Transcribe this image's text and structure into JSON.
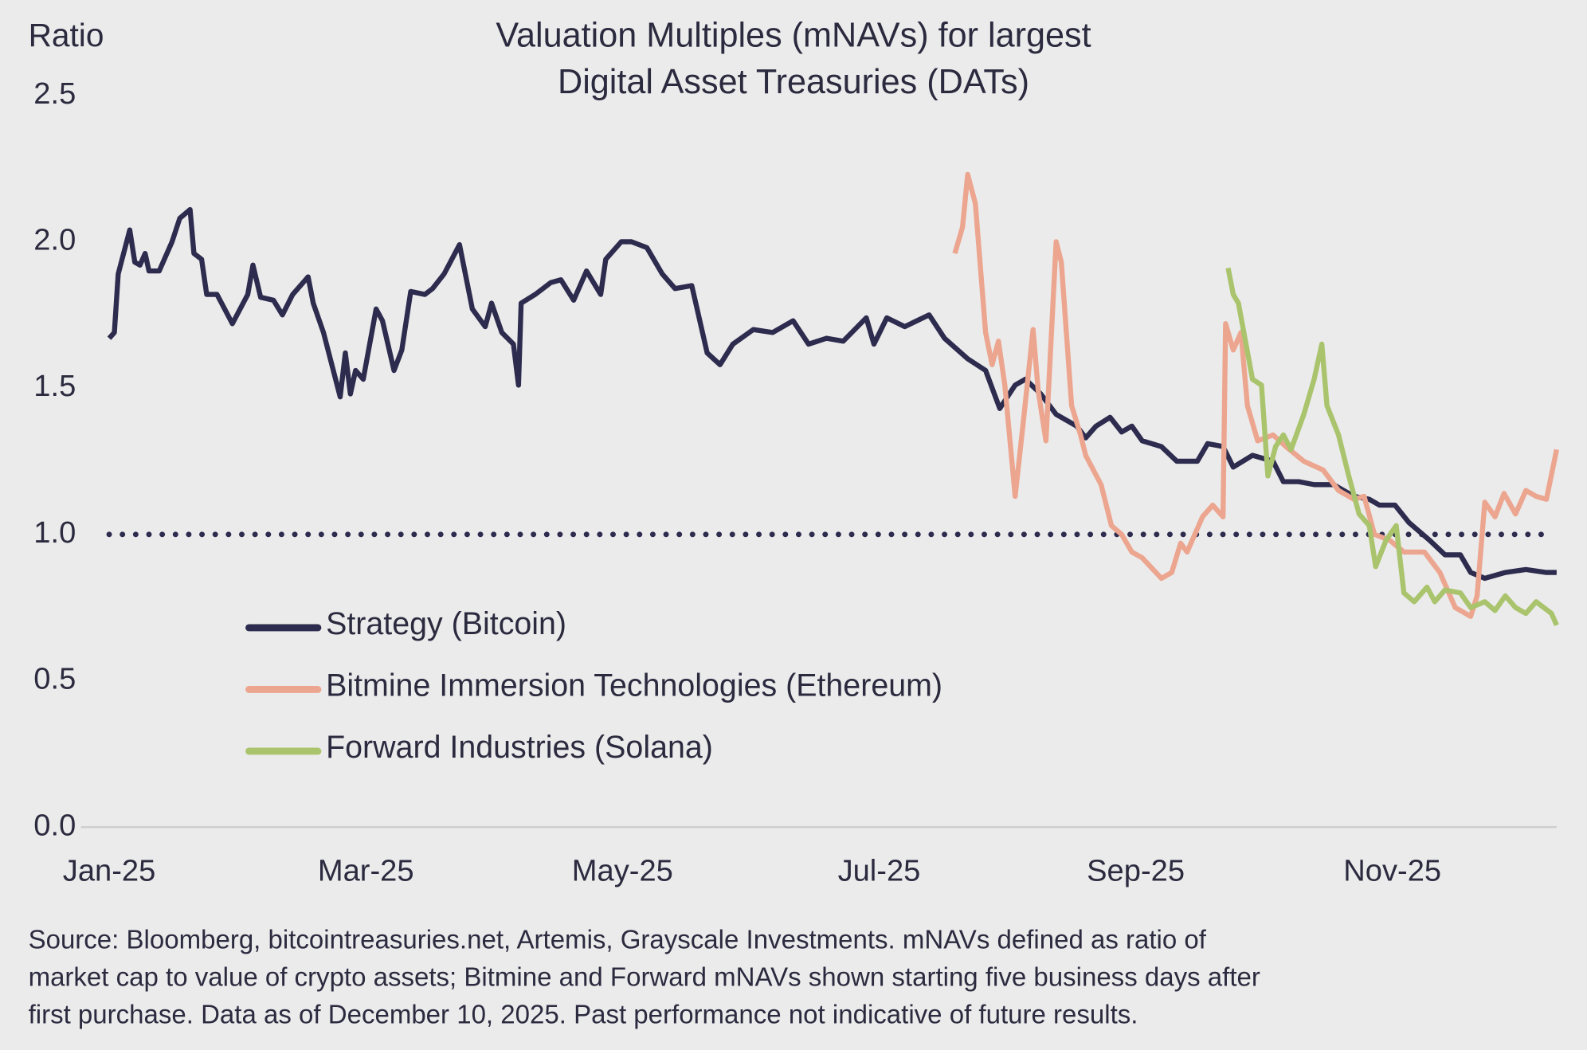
{
  "chart_data": {
    "type": "line",
    "title": [
      "Valuation Multiples (mNAVs) for largest",
      "Digital Asset Treasuries (DATs)"
    ],
    "y_label": "Ratio",
    "xlim": [
      -0.22,
      11.28
    ],
    "xticks": [
      {
        "value": 0,
        "label": "Jan-25"
      },
      {
        "value": 2,
        "label": "Mar-25"
      },
      {
        "value": 4,
        "label": "May-25"
      },
      {
        "value": 6,
        "label": "Jul-25"
      },
      {
        "value": 8,
        "label": "Sep-25"
      },
      {
        "value": 10,
        "label": "Nov-25"
      }
    ],
    "ylim": [
      0,
      2.5
    ],
    "yticks": [
      {
        "value": 0,
        "label": "0.0"
      },
      0.5,
      {
        "value": 1,
        "label": "1.0"
      },
      1.5,
      {
        "value": 2,
        "label": "2.0"
      },
      2.5
    ],
    "grid": false,
    "hline": 1.0,
    "legend": "left",
    "series": [
      {
        "name": "Strategy (Bitcoin)",
        "color": "#2d2b4e",
        "x": [
          0,
          0.04,
          0.07,
          0.16,
          0.2,
          0.24,
          0.28,
          0.31,
          0.39,
          0.49,
          0.55,
          0.63,
          0.66,
          0.72,
          0.76,
          0.84,
          0.96,
          1.08,
          1.12,
          1.18,
          1.28,
          1.35,
          1.43,
          1.55,
          1.59,
          1.67,
          1.8,
          1.84,
          1.88,
          1.92,
          1.98,
          2.08,
          2.13,
          2.22,
          2.28,
          2.35,
          2.46,
          2.52,
          2.61,
          2.73,
          2.83,
          2.93,
          2.98,
          3.06,
          3.15,
          3.19,
          3.21,
          3.32,
          3.44,
          3.52,
          3.62,
          3.72,
          3.83,
          3.87,
          3.99,
          4.07,
          4.19,
          4.31,
          4.41,
          4.54,
          4.66,
          4.76,
          4.86,
          5.02,
          5.17,
          5.33,
          5.45,
          5.59,
          5.72,
          5.9,
          5.96,
          6.06,
          6.2,
          6.39,
          6.51,
          6.69,
          6.83,
          6.94,
          7.06,
          7.14,
          7.26,
          7.38,
          7.54,
          7.61,
          7.69,
          7.8,
          7.89,
          7.97,
          8.05,
          8.2,
          8.32,
          8.48,
          8.56,
          8.68,
          8.76,
          8.91,
          9.07,
          9.15,
          9.27,
          9.39,
          9.54,
          9.7,
          9.82,
          9.9,
          10.02,
          10.13,
          10.29,
          10.41,
          10.53,
          10.61,
          10.72,
          10.88,
          11.04,
          11.2,
          11.28
        ],
        "values": [
          1.67,
          1.69,
          1.89,
          2.04,
          1.93,
          1.92,
          1.96,
          1.9,
          1.9,
          2.0,
          2.08,
          2.11,
          1.96,
          1.94,
          1.82,
          1.82,
          1.72,
          1.82,
          1.92,
          1.81,
          1.8,
          1.75,
          1.82,
          1.88,
          1.79,
          1.69,
          1.47,
          1.62,
          1.48,
          1.56,
          1.53,
          1.77,
          1.73,
          1.56,
          1.63,
          1.83,
          1.82,
          1.84,
          1.89,
          1.99,
          1.77,
          1.71,
          1.79,
          1.69,
          1.65,
          1.51,
          1.79,
          1.82,
          1.86,
          1.87,
          1.8,
          1.9,
          1.82,
          1.94,
          2.0,
          2.0,
          1.98,
          1.89,
          1.84,
          1.85,
          1.62,
          1.58,
          1.65,
          1.7,
          1.69,
          1.73,
          1.65,
          1.67,
          1.66,
          1.74,
          1.65,
          1.74,
          1.71,
          1.75,
          1.67,
          1.6,
          1.56,
          1.43,
          1.51,
          1.53,
          1.48,
          1.41,
          1.37,
          1.33,
          1.37,
          1.4,
          1.35,
          1.37,
          1.32,
          1.3,
          1.25,
          1.25,
          1.31,
          1.3,
          1.23,
          1.27,
          1.25,
          1.18,
          1.18,
          1.17,
          1.17,
          1.13,
          1.12,
          1.1,
          1.1,
          1.04,
          0.98,
          0.93,
          0.93,
          0.87,
          0.85,
          0.87,
          0.88,
          0.87,
          0.87
        ]
      },
      {
        "name": "Bitmine Immersion Technologies (Ethereum)",
        "color": "#eca58f",
        "x": [
          6.59,
          6.65,
          6.69,
          6.75,
          6.83,
          6.88,
          6.93,
          6.98,
          7.06,
          7.12,
          7.2,
          7.24,
          7.3,
          7.38,
          7.42,
          7.5,
          7.57,
          7.61,
          7.73,
          7.81,
          7.89,
          7.97,
          8.05,
          8.2,
          8.28,
          8.35,
          8.4,
          8.52,
          8.6,
          8.68,
          8.7,
          8.76,
          8.82,
          8.87,
          8.95,
          9.07,
          9.17,
          9.31,
          9.46,
          9.58,
          9.7,
          9.78,
          9.86,
          9.98,
          10.09,
          10.25,
          10.37,
          10.49,
          10.61,
          10.66,
          10.72,
          10.8,
          10.87,
          10.96,
          11.04,
          11.12,
          11.2,
          11.28
        ],
        "values": [
          1.96,
          2.05,
          2.23,
          2.13,
          1.69,
          1.58,
          1.66,
          1.51,
          1.13,
          1.37,
          1.7,
          1.49,
          1.32,
          2.0,
          1.93,
          1.44,
          1.34,
          1.27,
          1.17,
          1.03,
          1.0,
          0.94,
          0.92,
          0.85,
          0.87,
          0.97,
          0.94,
          1.06,
          1.1,
          1.06,
          1.72,
          1.63,
          1.69,
          1.44,
          1.32,
          1.34,
          1.3,
          1.25,
          1.22,
          1.15,
          1.12,
          1.13,
          1.0,
          0.98,
          0.94,
          0.94,
          0.87,
          0.75,
          0.72,
          0.79,
          1.11,
          1.06,
          1.14,
          1.07,
          1.15,
          1.13,
          1.12,
          1.29
        ]
      },
      {
        "name": "Forward Industries (Solana)",
        "color": "#a9c46c",
        "x": [
          8.72,
          8.76,
          8.8,
          8.91,
          8.98,
          9.03,
          9.09,
          9.15,
          9.21,
          9.31,
          9.39,
          9.45,
          9.49,
          9.58,
          9.66,
          9.74,
          9.82,
          9.87,
          9.95,
          10.03,
          10.09,
          10.17,
          10.27,
          10.33,
          10.41,
          10.53,
          10.61,
          10.72,
          10.8,
          10.88,
          10.96,
          11.04,
          11.12,
          11.24,
          11.28
        ],
        "values": [
          1.91,
          1.82,
          1.79,
          1.53,
          1.51,
          1.2,
          1.3,
          1.34,
          1.29,
          1.41,
          1.53,
          1.65,
          1.44,
          1.34,
          1.2,
          1.07,
          1.03,
          0.89,
          0.98,
          1.03,
          0.8,
          0.77,
          0.82,
          0.77,
          0.81,
          0.8,
          0.75,
          0.77,
          0.74,
          0.79,
          0.75,
          0.73,
          0.77,
          0.73,
          0.69
        ]
      }
    ],
    "source_lines": [
      "Source: Bloomberg, bitcointreasuries.net, Artemis, Grayscale Investments. mNAVs defined as ratio of",
      "market cap to value of crypto assets; Bitmine and Forward mNAVs shown starting five business days after",
      "first purchase. Data as of December 10, 2025. Past performance not indicative of future results."
    ]
  }
}
